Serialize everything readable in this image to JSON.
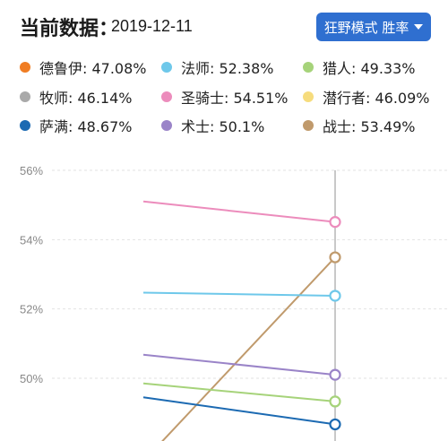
{
  "header": {
    "title": "当前数据：",
    "date": "2019-12-11",
    "mode_label": "狂野模式 胜率"
  },
  "legend": [
    {
      "name": "德鲁伊",
      "value_text": "47.08%",
      "color": "#f07d23"
    },
    {
      "name": "法师",
      "value_text": "52.38%",
      "color": "#6ec8ea"
    },
    {
      "name": "猎人",
      "value_text": "49.33%",
      "color": "#a6d37a"
    },
    {
      "name": "牧师",
      "value_text": "46.14%",
      "color": "#a9a9a9"
    },
    {
      "name": "圣骑士",
      "value_text": "54.51%",
      "color": "#ec8cbc"
    },
    {
      "name": "潜行者",
      "value_text": "46.09%",
      "color": "#f6dc7d"
    },
    {
      "name": "萨满",
      "value_text": "48.67%",
      "color": "#1c6ab2"
    },
    {
      "name": "术士",
      "value_text": "50.1%",
      "color": "#9a84c8"
    },
    {
      "name": "战士",
      "value_text": "53.49%",
      "color": "#c09a6c"
    }
  ],
  "chart_data": {
    "type": "line",
    "ylim": [
      49.5,
      56
    ],
    "yticks": [
      50,
      52,
      54,
      56
    ],
    "ytick_labels": [
      "50%",
      "52%",
      "54%",
      "56%"
    ],
    "grid": true,
    "series": [
      {
        "name": "圣骑士",
        "color": "#ec8cbc",
        "values": [
          55.1,
          54.51
        ]
      },
      {
        "name": "战士",
        "color": "#c09a6c",
        "values": [
          47.6,
          53.49
        ]
      },
      {
        "name": "法师",
        "color": "#6ec8ea",
        "values": [
          52.47,
          52.38
        ]
      },
      {
        "name": "术士",
        "color": "#9a84c8",
        "values": [
          50.68,
          50.1
        ]
      },
      {
        "name": "猎人",
        "color": "#a6d37a",
        "values": [
          49.85,
          49.33
        ]
      },
      {
        "name": "萨满",
        "color": "#1c6ab2",
        "values": [
          49.45,
          48.67
        ]
      }
    ]
  }
}
